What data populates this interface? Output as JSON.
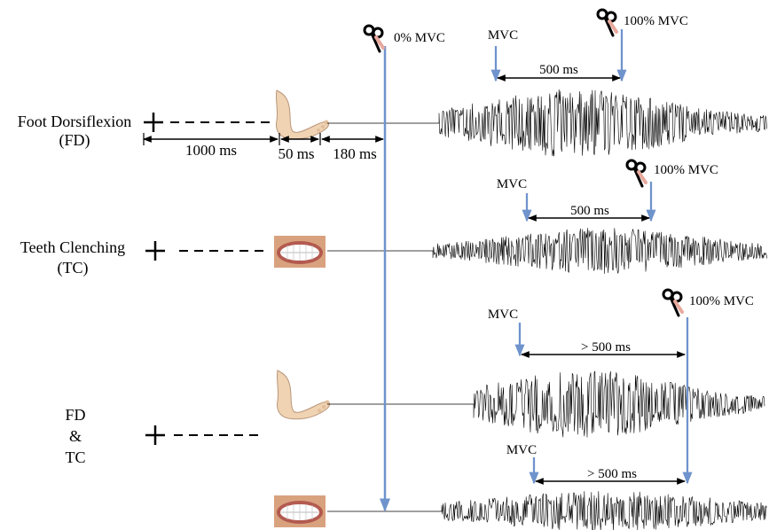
{
  "colors": {
    "marker_line": "#6f93cc",
    "signal": "#000000",
    "skin": "#efd3b3",
    "lips": "#c0645a"
  },
  "icons": {
    "foot": "foot-icon",
    "teeth": "teeth-clench-icon",
    "marker": "scissors-marker-icon"
  },
  "trials": {
    "fd": {
      "label_line1": "Foot Dorsiflexion",
      "label_line2": "(FD)",
      "cue_interval": "1000 ms",
      "stim_interval": "50 ms",
      "delay_interval": "180 ms",
      "mvc": "MVC",
      "mvc_window": "500 ms",
      "peak": "100% MVC"
    },
    "tc": {
      "label_line1": "Teeth Clenching",
      "label_line2": "(TC)",
      "mvc": "MVC",
      "mvc_window": "500 ms",
      "peak": "100% MVC"
    },
    "combined": {
      "label_line1": "FD",
      "label_line2": "&",
      "label_line3": "TC",
      "mvc_foot": "MVC",
      "mvc_window_foot": "> 500 ms",
      "mvc_teeth": "MVC",
      "mvc_window_teeth": "> 500 ms",
      "peak": "100% MVC"
    }
  },
  "onset_marker": "0% MVC"
}
